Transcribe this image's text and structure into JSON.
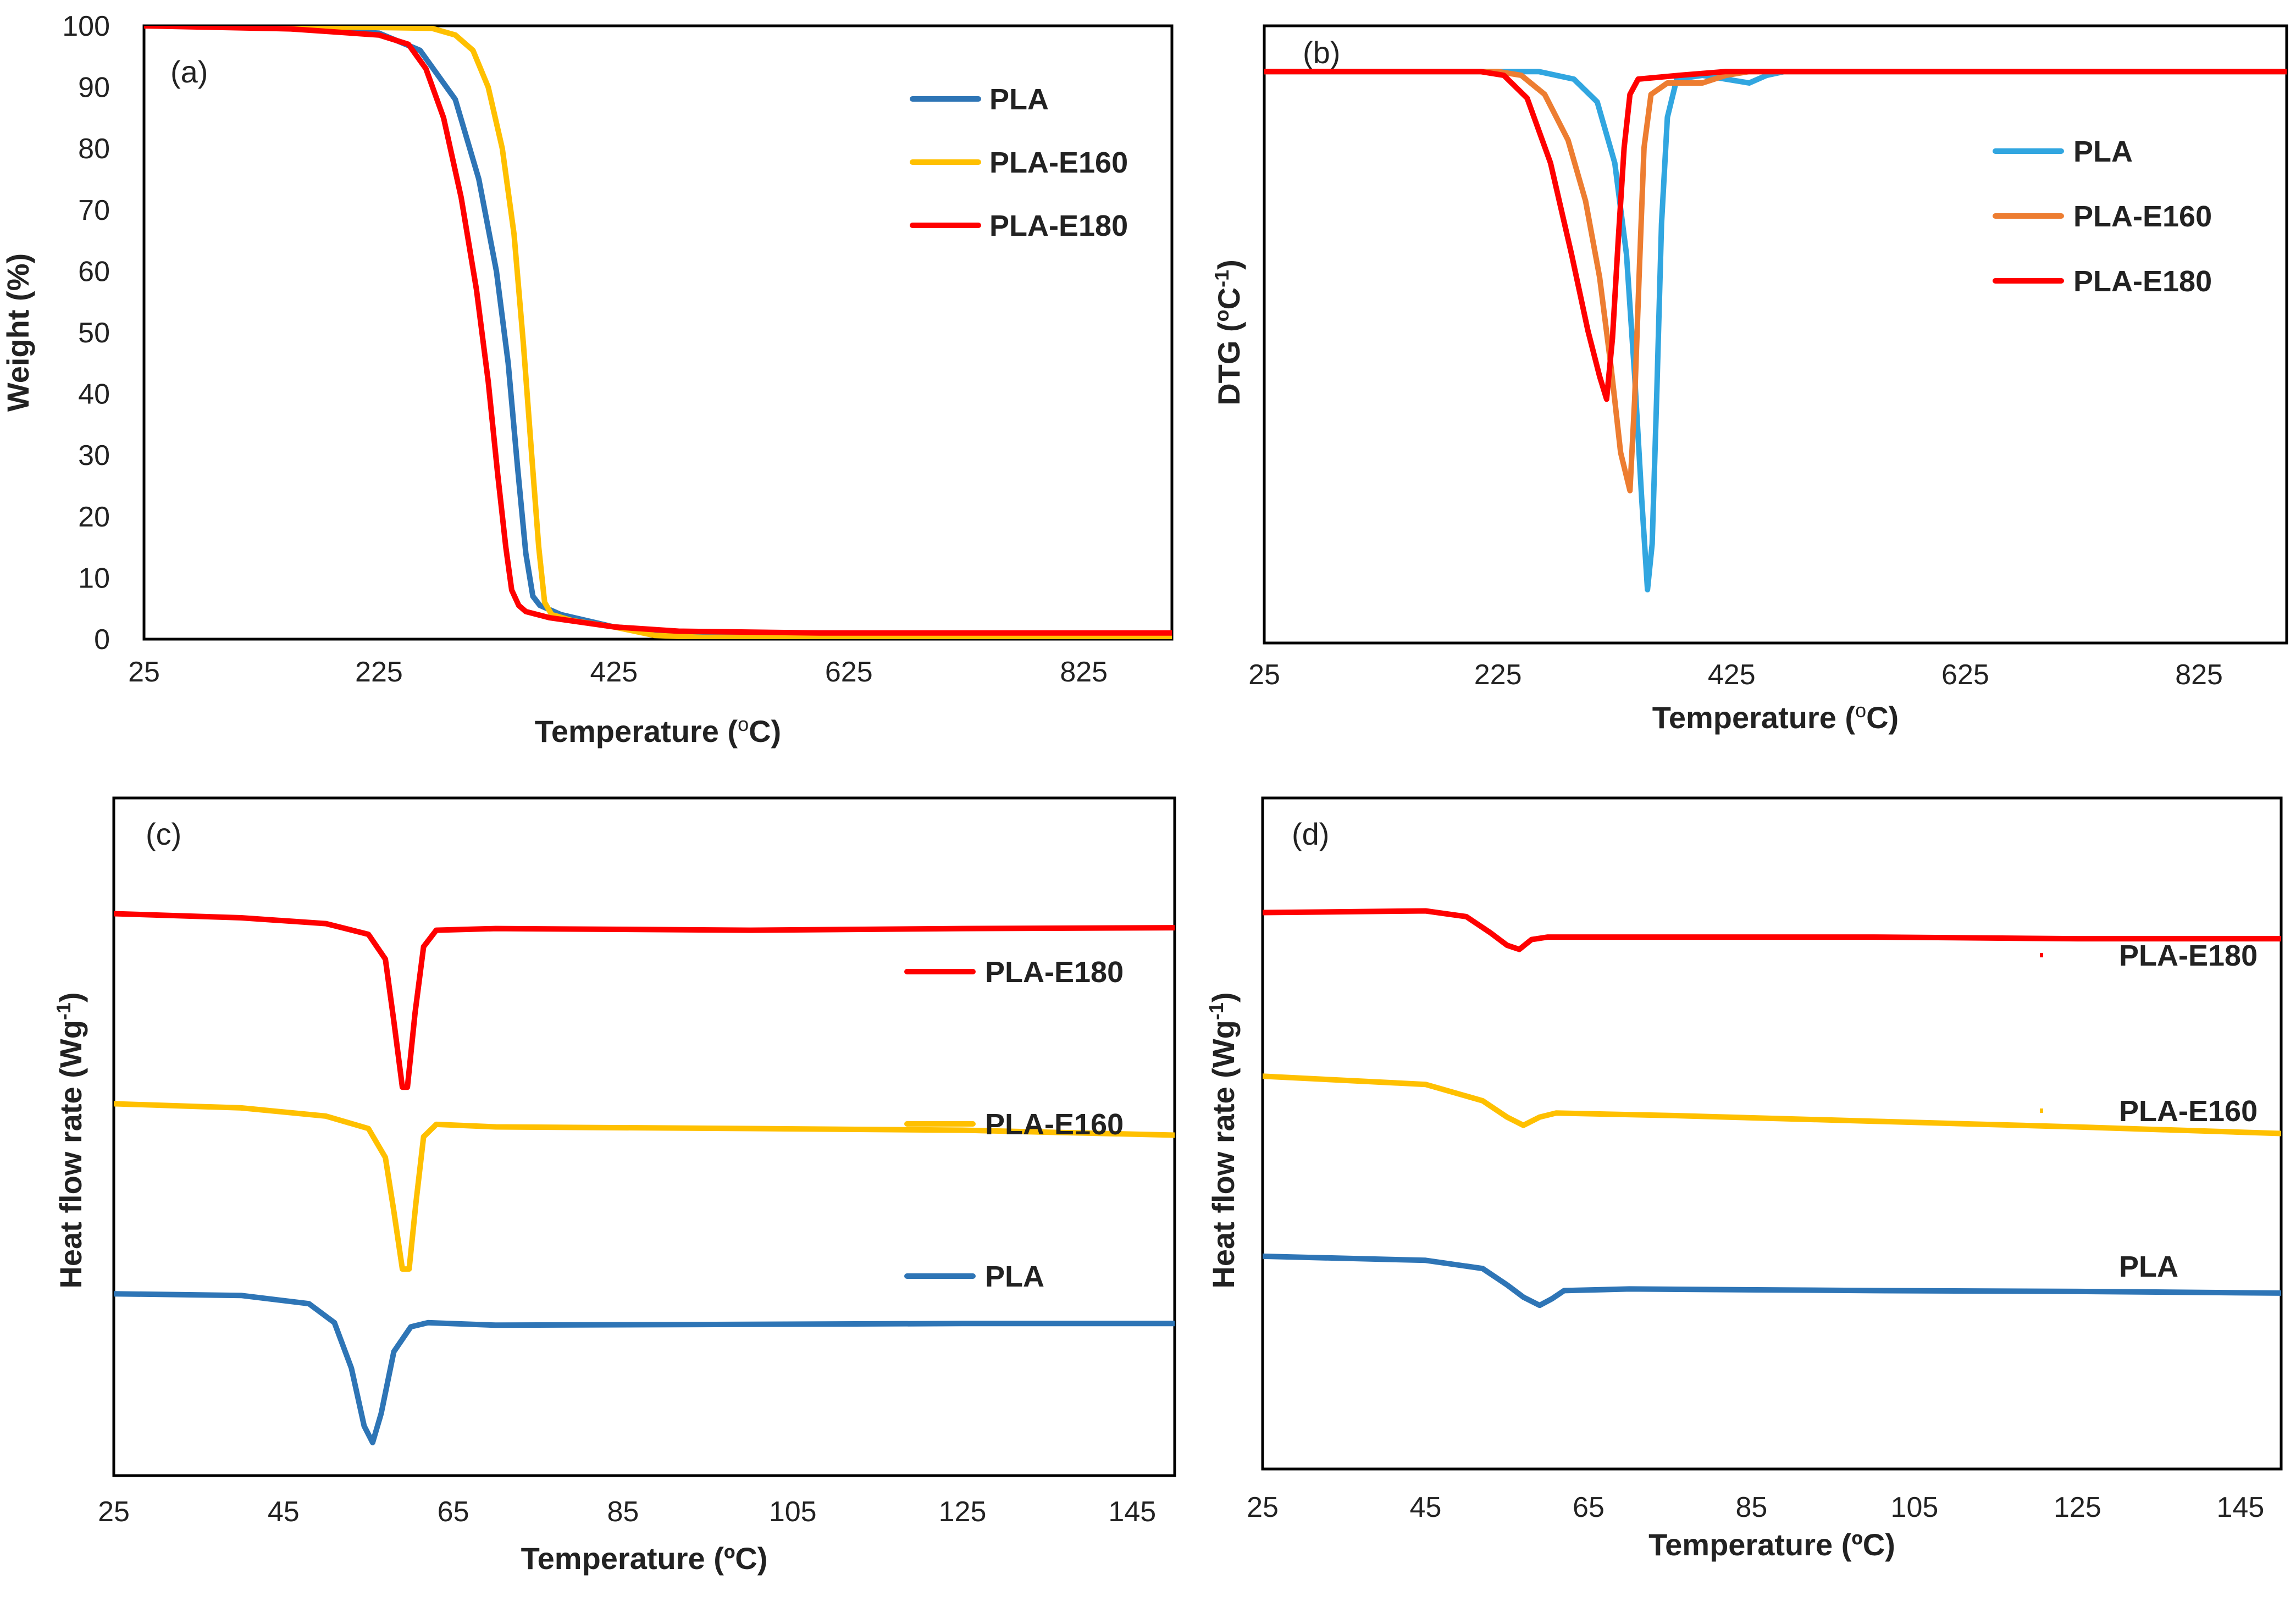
{
  "chart_data": [
    {
      "panel_label": "(a)",
      "type": "line",
      "xlabel": "Temperature (",
      "xlabel_sup": "o",
      "xlabel_tail": "C)",
      "ylabel": "Weight  (%)",
      "xlim": [
        25,
        900
      ],
      "ylim": [
        0,
        100
      ],
      "x_ticks": [
        25,
        225,
        425,
        625,
        825
      ],
      "x_tick_labels": [
        "25",
        "225",
        "425",
        "625",
        "825"
      ],
      "y_ticks": [
        0,
        10,
        20,
        30,
        40,
        50,
        60,
        70,
        80,
        90,
        100
      ],
      "y_tick_labels": [
        "0",
        "10",
        "20",
        "30",
        "40",
        "50",
        "60",
        "70",
        "80",
        "90",
        "100"
      ],
      "legend_position": "top-right",
      "series": [
        {
          "name": "PLA",
          "color": "#2e75b6",
          "points": [
            [
              25,
              100
            ],
            [
              150,
              99.7
            ],
            [
              225,
              98.8
            ],
            [
              260,
              96
            ],
            [
              290,
              88
            ],
            [
              310,
              75
            ],
            [
              325,
              60
            ],
            [
              335,
              45
            ],
            [
              343,
              28
            ],
            [
              350,
              14
            ],
            [
              356,
              7
            ],
            [
              362,
              5.5
            ],
            [
              380,
              4
            ],
            [
              425,
              2
            ],
            [
              480,
              1.2
            ],
            [
              600,
              1
            ],
            [
              900,
              0.9
            ]
          ]
        },
        {
          "name": "PLA-E160",
          "color": "#ffc000",
          "points": [
            [
              25,
              100
            ],
            [
              200,
              99.8
            ],
            [
              270,
              99.6
            ],
            [
              290,
              98.5
            ],
            [
              305,
              96
            ],
            [
              318,
              90
            ],
            [
              330,
              80
            ],
            [
              340,
              66
            ],
            [
              348,
              48
            ],
            [
              355,
              30
            ],
            [
              361,
              15
            ],
            [
              366,
              6
            ],
            [
              372,
              4
            ],
            [
              390,
              3
            ],
            [
              425,
              2
            ],
            [
              460,
              0.6
            ],
            [
              500,
              0.3
            ],
            [
              900,
              0.3
            ]
          ]
        },
        {
          "name": "PLA-E180",
          "color": "#ff0000",
          "points": [
            [
              25,
              100
            ],
            [
              150,
              99.5
            ],
            [
              225,
              98.5
            ],
            [
              250,
              97
            ],
            [
              265,
              93
            ],
            [
              280,
              85
            ],
            [
              295,
              72
            ],
            [
              308,
              57
            ],
            [
              318,
              42
            ],
            [
              326,
              27
            ],
            [
              333,
              15
            ],
            [
              338,
              8
            ],
            [
              344,
              5.5
            ],
            [
              350,
              4.5
            ],
            [
              370,
              3.5
            ],
            [
              425,
              2
            ],
            [
              480,
              1.3
            ],
            [
              600,
              1
            ],
            [
              900,
              1
            ]
          ]
        }
      ]
    },
    {
      "panel_label": "(b)",
      "type": "line",
      "xlabel": "Temperature (",
      "xlabel_sup": "o",
      "xlabel_tail": "C)",
      "ylabel": "DTG (",
      "ylabel_sup": "o",
      "ylabel_mid": "C",
      "ylabel_sup2": "-1",
      "ylabel_tail": ")",
      "xlim": [
        25,
        900
      ],
      "ylim": [
        -7.5,
        0.6
      ],
      "x_ticks": [
        25,
        225,
        425,
        625,
        825
      ],
      "x_tick_labels": [
        "25",
        "225",
        "425",
        "625",
        "825"
      ],
      "legend_position": "top-right",
      "series": [
        {
          "name": "PLA",
          "color": "#31a6e0",
          "points": [
            [
              25,
              0
            ],
            [
              260,
              0
            ],
            [
              290,
              -0.1
            ],
            [
              310,
              -0.4
            ],
            [
              325,
              -1.2
            ],
            [
              335,
              -2.4
            ],
            [
              342,
              -4
            ],
            [
              348,
              -5.6
            ],
            [
              353,
              -6.8
            ],
            [
              357,
              -6.2
            ],
            [
              361,
              -4.2
            ],
            [
              365,
              -2
            ],
            [
              370,
              -0.6
            ],
            [
              378,
              -0.1
            ],
            [
              400,
              -0.05
            ],
            [
              420,
              -0.1
            ],
            [
              440,
              -0.15
            ],
            [
              455,
              -0.05
            ],
            [
              470,
              0
            ],
            [
              900,
              0
            ]
          ]
        },
        {
          "name": "PLA-E160",
          "color": "#ed7d31",
          "points": [
            [
              25,
              0
            ],
            [
              225,
              0
            ],
            [
              245,
              -0.05
            ],
            [
              265,
              -0.3
            ],
            [
              285,
              -0.9
            ],
            [
              300,
              -1.7
            ],
            [
              312,
              -2.7
            ],
            [
              322,
              -3.9
            ],
            [
              330,
              -5
            ],
            [
              338,
              -5.5
            ],
            [
              342,
              -4.3
            ],
            [
              346,
              -2.6
            ],
            [
              350,
              -1
            ],
            [
              356,
              -0.3
            ],
            [
              370,
              -0.15
            ],
            [
              400,
              -0.15
            ],
            [
              420,
              -0.05
            ],
            [
              440,
              0
            ],
            [
              900,
              0
            ]
          ]
        },
        {
          "name": "PLA-E180",
          "color": "#ff0000",
          "points": [
            [
              25,
              0
            ],
            [
              210,
              0
            ],
            [
              230,
              -0.05
            ],
            [
              250,
              -0.35
            ],
            [
              270,
              -1.2
            ],
            [
              288,
              -2.4
            ],
            [
              302,
              -3.4
            ],
            [
              312,
              -4.0
            ],
            [
              318,
              -4.3
            ],
            [
              323,
              -3.5
            ],
            [
              328,
              -2.2
            ],
            [
              333,
              -1
            ],
            [
              338,
              -0.3
            ],
            [
              345,
              -0.1
            ],
            [
              380,
              -0.05
            ],
            [
              420,
              0
            ],
            [
              900,
              0
            ]
          ]
        }
      ]
    },
    {
      "panel_label": "(c)",
      "type": "line",
      "xlabel": "Temperature (ºC)",
      "ylabel": "Heat flow rate (Wg",
      "ylabel_sup": "-1",
      "ylabel_tail": ")",
      "xlim": [
        25,
        150
      ],
      "ylim": [
        -6.8,
        1.4
      ],
      "x_ticks": [
        25,
        45,
        65,
        85,
        105,
        125,
        145
      ],
      "x_tick_labels": [
        "25",
        "45",
        "65",
        "85",
        "105",
        "125",
        "145"
      ],
      "legend_position": "right",
      "legend_style": "inline",
      "series": [
        {
          "name": "PLA-E180",
          "color": "#ff0000",
          "points": [
            [
              25,
              0
            ],
            [
              40,
              -0.05
            ],
            [
              50,
              -0.12
            ],
            [
              55,
              -0.25
            ],
            [
              57,
              -0.55
            ],
            [
              58,
              -1.3
            ],
            [
              59,
              -2.1
            ],
            [
              59.6,
              -2.1
            ],
            [
              60.5,
              -1.2
            ],
            [
              61.5,
              -0.4
            ],
            [
              63,
              -0.2
            ],
            [
              70,
              -0.18
            ],
            [
              100,
              -0.2
            ],
            [
              125,
              -0.18
            ],
            [
              150,
              -0.17
            ]
          ]
        },
        {
          "name": "PLA-E160",
          "color": "#ffc000",
          "points": [
            [
              25,
              -2.3
            ],
            [
              40,
              -2.35
            ],
            [
              50,
              -2.45
            ],
            [
              55,
              -2.6
            ],
            [
              57,
              -2.95
            ],
            [
              58,
              -3.6
            ],
            [
              59,
              -4.3
            ],
            [
              59.8,
              -4.3
            ],
            [
              60.6,
              -3.5
            ],
            [
              61.5,
              -2.7
            ],
            [
              63,
              -2.55
            ],
            [
              70,
              -2.58
            ],
            [
              100,
              -2.6
            ],
            [
              125,
              -2.62
            ],
            [
              150,
              -2.68
            ]
          ]
        },
        {
          "name": "PLA",
          "color": "#2e75b6",
          "points": [
            [
              25,
              -4.6
            ],
            [
              40,
              -4.62
            ],
            [
              48,
              -4.72
            ],
            [
              51,
              -4.95
            ],
            [
              53,
              -5.5
            ],
            [
              54.5,
              -6.2
            ],
            [
              55.5,
              -6.4
            ],
            [
              56.5,
              -6.05
            ],
            [
              58,
              -5.3
            ],
            [
              60,
              -5.0
            ],
            [
              62,
              -4.95
            ],
            [
              70,
              -4.98
            ],
            [
              100,
              -4.97
            ],
            [
              125,
              -4.96
            ],
            [
              150,
              -4.96
            ]
          ]
        }
      ]
    },
    {
      "panel_label": "(d)",
      "type": "line",
      "xlabel": "Temperature (ºC)",
      "ylabel": "Heat flow rate (Wg",
      "ylabel_sup": "-1",
      "ylabel_tail": ")",
      "xlim": [
        25,
        150
      ],
      "ylim": [
        -6.8,
        1.4
      ],
      "x_ticks": [
        25,
        45,
        65,
        85,
        105,
        125,
        145
      ],
      "x_tick_labels": [
        "25",
        "45",
        "65",
        "85",
        "105",
        "125",
        "145"
      ],
      "legend_position": "right",
      "legend_style": "markers",
      "series": [
        {
          "name": "PLA-E180",
          "color": "#ff0000",
          "points": [
            [
              25,
              0
            ],
            [
              45,
              0.02
            ],
            [
              50,
              -0.05
            ],
            [
              53,
              -0.25
            ],
            [
              55,
              -0.4
            ],
            [
              56.5,
              -0.45
            ],
            [
              58,
              -0.33
            ],
            [
              60,
              -0.3
            ],
            [
              75,
              -0.3
            ],
            [
              100,
              -0.3
            ],
            [
              125,
              -0.32
            ],
            [
              150,
              -0.32
            ]
          ]
        },
        {
          "name": "PLA-E160",
          "color": "#ffc000",
          "points": [
            [
              25,
              -2.0
            ],
            [
              45,
              -2.1
            ],
            [
              52,
              -2.3
            ],
            [
              55,
              -2.5
            ],
            [
              57,
              -2.6
            ],
            [
              59,
              -2.5
            ],
            [
              61,
              -2.45
            ],
            [
              75,
              -2.48
            ],
            [
              100,
              -2.55
            ],
            [
              125,
              -2.62
            ],
            [
              150,
              -2.7
            ]
          ]
        },
        {
          "name": "PLA",
          "color": "#2e75b6",
          "points": [
            [
              25,
              -4.2
            ],
            [
              45,
              -4.25
            ],
            [
              52,
              -4.35
            ],
            [
              55,
              -4.55
            ],
            [
              57,
              -4.7
            ],
            [
              59,
              -4.8
            ],
            [
              60.5,
              -4.72
            ],
            [
              62,
              -4.62
            ],
            [
              70,
              -4.6
            ],
            [
              100,
              -4.62
            ],
            [
              125,
              -4.63
            ],
            [
              150,
              -4.65
            ]
          ]
        }
      ]
    }
  ]
}
